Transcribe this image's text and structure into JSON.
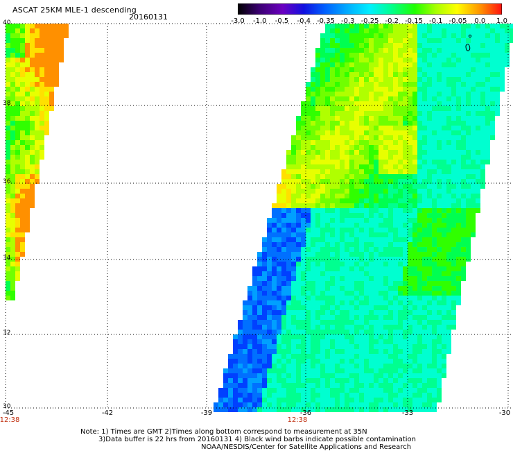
{
  "header": {
    "title": "ASCAT 25KM MLE-1 descending",
    "date": "20160131"
  },
  "colorbar": {
    "labels": [
      "-3.0",
      "-1.0",
      "-0.5",
      "-0.4",
      "-0.35",
      "-0.3",
      "-0.25",
      "-0.2",
      "-0.15",
      "-0.1",
      "-0.05",
      "0.0",
      "1.0"
    ],
    "colors": [
      "#000000",
      "#6a00b0",
      "#1010e0",
      "#0060ff",
      "#00a0ff",
      "#00e8ff",
      "#00ffd0",
      "#00ff80",
      "#20ff00",
      "#a0ff00",
      "#ffff00",
      "#ff9000",
      "#ff1000"
    ]
  },
  "axes": {
    "lat_labels": [
      "40",
      "38",
      "36",
      "34",
      "32",
      "30"
    ],
    "lon_labels": [
      "-45",
      "-42",
      "-39",
      "-36",
      "-33",
      "-30"
    ],
    "time_labels": [
      "12:38",
      "12:38"
    ]
  },
  "notes": {
    "line1": "Note: 1) Times are GMT 2)Times along bottom correspond to measurement at 35N",
    "line2": "3)Data buffer is 22 hrs from 20160131 4) Black wind barbs indicate possible contamination",
    "line3": "NOAA/NESDIS/Center for Satellite Applications and Research"
  }
}
